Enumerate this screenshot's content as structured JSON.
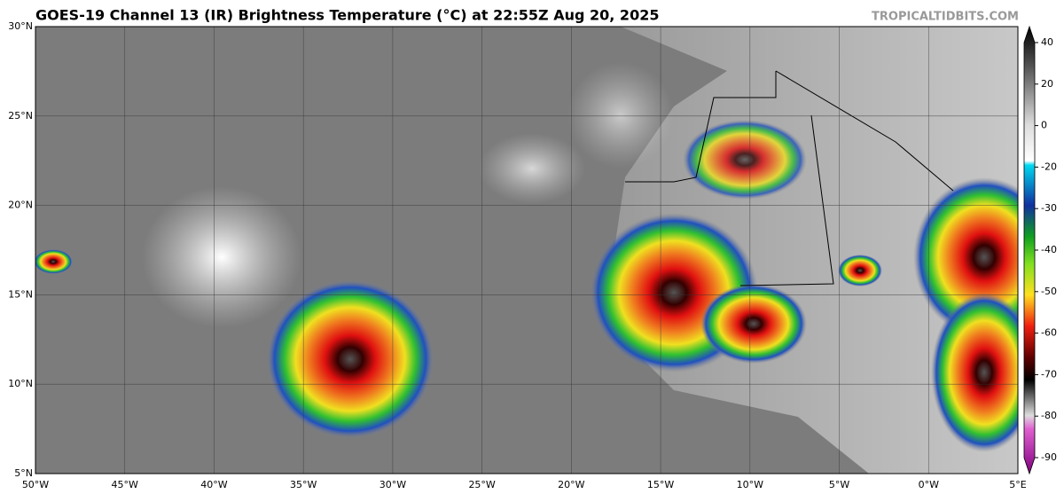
{
  "header": {
    "title": "GOES-19 Channel 13 (IR) Brightness Temperature (°C) at 22:55Z Aug 20, 2025",
    "watermark": "TROPICALTIDBITS.COM"
  },
  "map": {
    "lat_labels": [
      "30°N",
      "25°N",
      "20°N",
      "15°N",
      "10°N",
      "5°N"
    ],
    "lon_labels": [
      "50°W",
      "45°W",
      "40°W",
      "35°W",
      "30°W",
      "25°W",
      "20°W",
      "15°W",
      "10°W",
      "5°W",
      "0°W",
      "5°E"
    ]
  },
  "colorbar": {
    "ticks": [
      40,
      20,
      0,
      -20,
      -30,
      -40,
      -50,
      -60,
      -70,
      -80,
      -90
    ]
  }
}
